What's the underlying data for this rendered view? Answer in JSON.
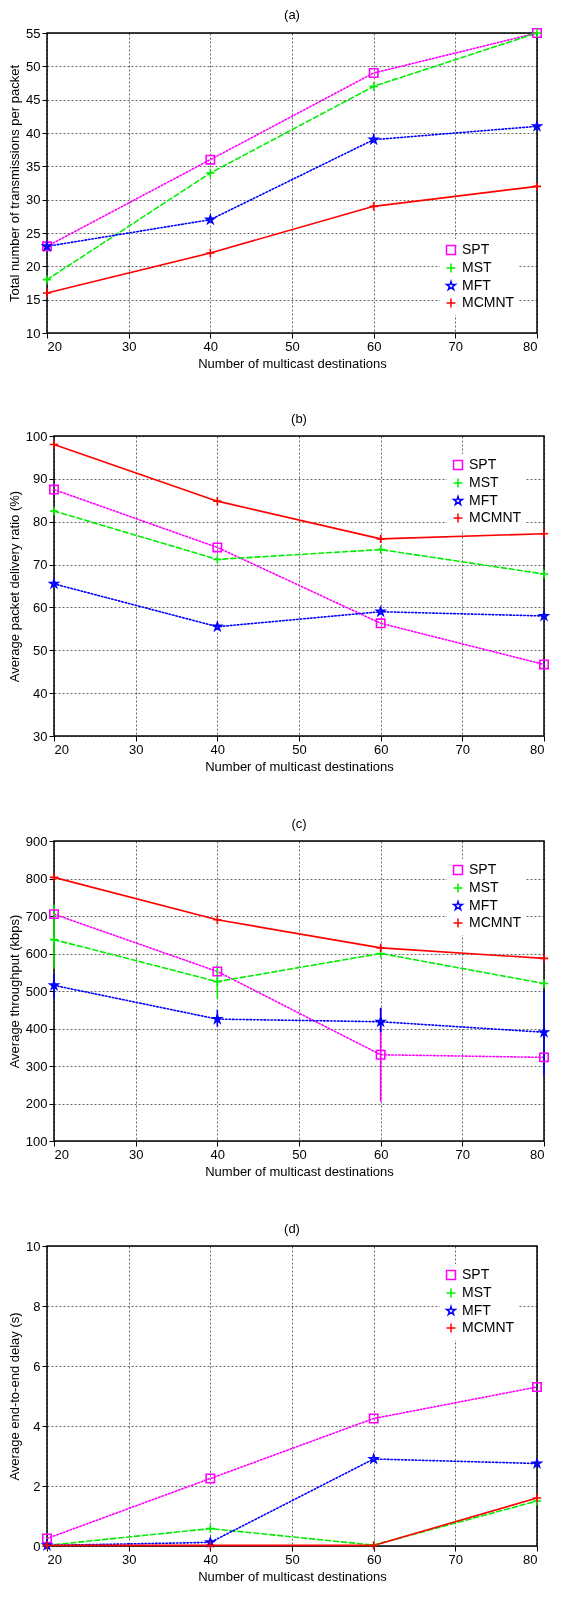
{
  "chart_data": [
    {
      "type": "line",
      "title": "(a)",
      "xlabel": "Number of multicast destinations",
      "ylabel": "Total number of transmissions per packet",
      "x": [
        20,
        40,
        60,
        80
      ],
      "xlim": [
        20,
        80
      ],
      "xticks": [
        20,
        30,
        40,
        50,
        60,
        70,
        80
      ],
      "ylim": [
        10,
        55
      ],
      "yticks": [
        10,
        15,
        20,
        25,
        30,
        35,
        40,
        45,
        50,
        55
      ],
      "grid": true,
      "legend": "bottom right",
      "series": [
        {
          "name": "SPT",
          "color": "#ff00ff",
          "marker": "square",
          "line_style": "dotted",
          "values": [
            23,
            36,
            49,
            55
          ]
        },
        {
          "name": "MST",
          "color": "#00ee00",
          "marker": "cross",
          "line_style": "dashed",
          "values": [
            18,
            34,
            47,
            55
          ]
        },
        {
          "name": "MFT",
          "color": "#0000ff",
          "marker": "star",
          "line_style": "dotted",
          "values": [
            23,
            27,
            39,
            41
          ]
        },
        {
          "name": "MCMNT",
          "color": "#ff0000",
          "marker": "cross",
          "line_style": "solid",
          "values": [
            16,
            22,
            29,
            32
          ]
        }
      ]
    },
    {
      "type": "line",
      "title": "(b)",
      "xlabel": "Number of multicast destinations",
      "ylabel": "Average packet delivery ratio (%)",
      "x": [
        20,
        40,
        60,
        80
      ],
      "xlim": [
        20,
        80
      ],
      "xticks": [
        20,
        30,
        40,
        50,
        60,
        70,
        80
      ],
      "ylim": [
        30,
        100
      ],
      "yticks": [
        30,
        40,
        50,
        60,
        70,
        80,
        90,
        100
      ],
      "grid": true,
      "legend": "top right",
      "series": [
        {
          "name": "SPT",
          "color": "#ff00ff",
          "marker": "square",
          "line_style": "dotted",
          "values": [
            87.5,
            74,
            56.3,
            46.7
          ]
        },
        {
          "name": "MST",
          "color": "#00ee00",
          "marker": "cross",
          "line_style": "dashed",
          "values": [
            82.5,
            71.2,
            73.5,
            67.8
          ]
        },
        {
          "name": "MFT",
          "color": "#0000ff",
          "marker": "star",
          "line_style": "dotted",
          "values": [
            65.5,
            55.5,
            59,
            58
          ]
        },
        {
          "name": "MCMNT",
          "color": "#ff0000",
          "marker": "cross",
          "line_style": "solid",
          "values": [
            98,
            84.8,
            76,
            77.2
          ]
        }
      ]
    },
    {
      "type": "line",
      "title": "(c)",
      "xlabel": "Number of multicast destinations",
      "ylabel": "Average throughput (kbps)",
      "x": [
        20,
        40,
        60,
        80
      ],
      "xlim": [
        20,
        80
      ],
      "xticks": [
        20,
        30,
        40,
        50,
        60,
        70,
        80
      ],
      "ylim": [
        100,
        900
      ],
      "yticks": [
        100,
        200,
        300,
        400,
        500,
        600,
        700,
        800,
        900
      ],
      "grid": true,
      "legend": "top right",
      "series": [
        {
          "name": "SPT",
          "color": "#ff00ff",
          "marker": "square",
          "line_style": "dotted",
          "values": [
            705,
            552,
            330,
            323
          ],
          "errors": [
            null,
            null,
            [
              205,
              455
            ],
            null
          ]
        },
        {
          "name": "MST",
          "color": "#00ee00",
          "marker": "cross",
          "line_style": "dashed",
          "values": [
            637,
            525,
            600,
            520
          ],
          "errors": [
            [
              560,
              730
            ],
            [
              480,
              570
            ],
            null,
            null
          ]
        },
        {
          "name": "MFT",
          "color": "#0000ff",
          "marker": "star",
          "line_style": "dotted",
          "values": [
            515,
            425,
            418,
            390
          ],
          "errors": [
            [
              480,
              545
            ],
            [
              405,
              450
            ],
            [
              390,
              455
            ],
            [
              275,
              500
            ]
          ]
        },
        {
          "name": "MCMNT",
          "color": "#ff0000",
          "marker": "cross",
          "line_style": "solid",
          "values": [
            803,
            690,
            615,
            587
          ]
        }
      ]
    },
    {
      "type": "line",
      "title": "(d)",
      "xlabel": "Number of multicast destinations",
      "ylabel": "Average end-to-end delay (s)",
      "x": [
        20,
        40,
        60,
        80
      ],
      "xlim": [
        20,
        80
      ],
      "xticks": [
        20,
        30,
        40,
        50,
        60,
        70,
        80
      ],
      "ylim": [
        0,
        10
      ],
      "yticks": [
        0,
        2,
        4,
        6,
        8,
        10
      ],
      "grid": true,
      "legend": "top right",
      "series": [
        {
          "name": "SPT",
          "color": "#ff00ff",
          "marker": "square",
          "line_style": "dotted",
          "values": [
            0.25,
            2.25,
            4.25,
            5.3
          ]
        },
        {
          "name": "MST",
          "color": "#00ee00",
          "marker": "cross",
          "line_style": "dashed",
          "values": [
            0.02,
            0.58,
            0.03,
            1.5
          ]
        },
        {
          "name": "MFT",
          "color": "#0000ff",
          "marker": "star",
          "line_style": "dotted",
          "values": [
            0.02,
            0.12,
            2.9,
            2.75
          ]
        },
        {
          "name": "MCMNT",
          "color": "#ff0000",
          "marker": "cross",
          "line_style": "solid",
          "values": [
            0.02,
            0.02,
            0.02,
            1.6
          ]
        }
      ]
    }
  ]
}
